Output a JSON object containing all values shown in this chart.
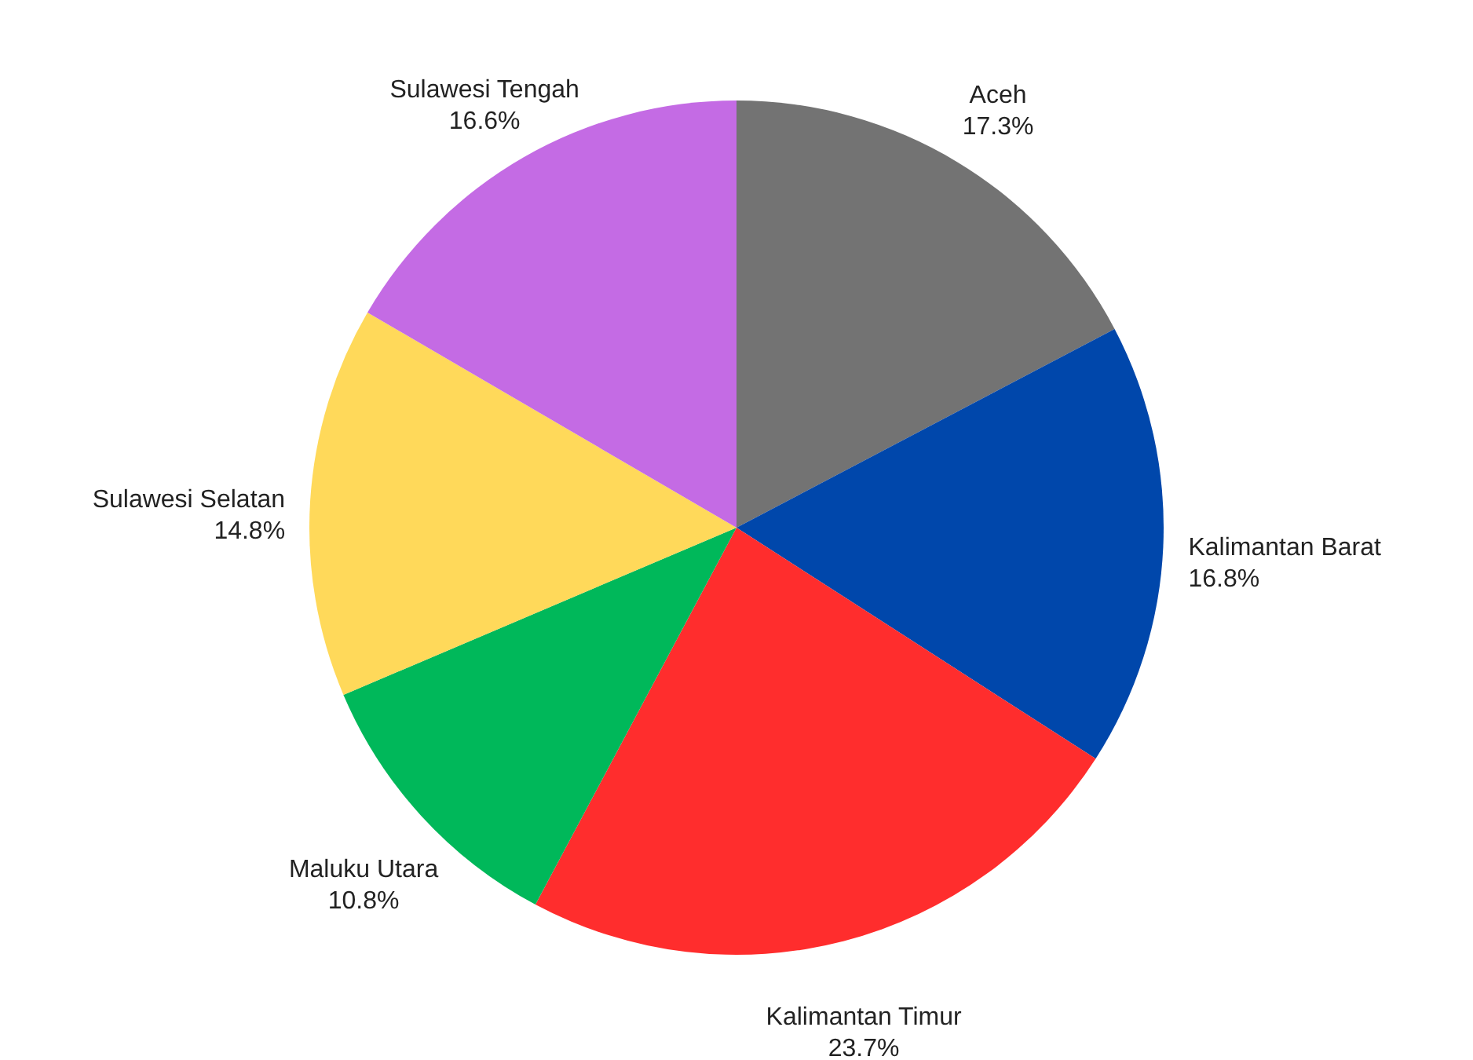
{
  "chart_data": {
    "type": "pie",
    "categories": [
      "Aceh",
      "Kalimantan Barat",
      "Kalimantan Timur",
      "Maluku Utara",
      "Sulawesi Selatan",
      "Sulawesi Tengah"
    ],
    "values": [
      17.3,
      16.8,
      23.7,
      10.8,
      14.8,
      16.6
    ],
    "value_labels": [
      "17.3%",
      "16.8%",
      "23.7%",
      "10.8%",
      "14.8%",
      "16.6%"
    ],
    "colors": [
      "#737373",
      "#0047ab",
      "#ff2d2d",
      "#00b85a",
      "#ffd95a",
      "#c46be4"
    ],
    "legend": false
  }
}
